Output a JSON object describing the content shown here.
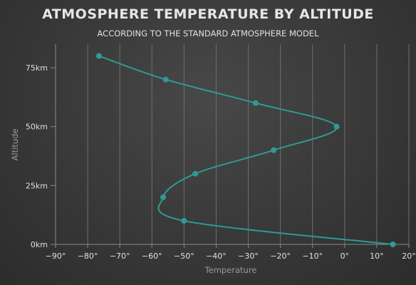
{
  "chart_data": {
    "type": "line",
    "title": "ATMOSPHERE TEMPERATURE BY ALTITUDE",
    "subtitle": "ACCORDING TO THE STANDARD ATMOSPHERE MODEL",
    "xlabel": "Temperature",
    "ylabel": "Altitude",
    "inverted": true,
    "xlim": [
      -90,
      20
    ],
    "ylim": [
      0,
      85
    ],
    "x_ticks": [
      {
        "value": -90,
        "label": "−90°"
      },
      {
        "value": -80,
        "label": "−80°"
      },
      {
        "value": -70,
        "label": "−70°"
      },
      {
        "value": -60,
        "label": "−60°"
      },
      {
        "value": -50,
        "label": "−50°"
      },
      {
        "value": -40,
        "label": "−40°"
      },
      {
        "value": -30,
        "label": "−30°"
      },
      {
        "value": -20,
        "label": "−20°"
      },
      {
        "value": -10,
        "label": "−10°"
      },
      {
        "value": 0,
        "label": "0°"
      },
      {
        "value": 10,
        "label": "10°"
      },
      {
        "value": 20,
        "label": "20°"
      }
    ],
    "y_ticks": [
      {
        "value": 0,
        "label": "0km"
      },
      {
        "value": 25,
        "label": "25km"
      },
      {
        "value": 50,
        "label": "50km"
      },
      {
        "value": 75,
        "label": "75km"
      }
    ],
    "grid": {
      "vertical": true,
      "horizontal": false
    },
    "series": [
      {
        "color": "#2f9a96",
        "points": [
          {
            "altitude": 0,
            "temperature": 15
          },
          {
            "altitude": 10,
            "temperature": -50
          },
          {
            "altitude": 20,
            "temperature": -56.5
          },
          {
            "altitude": 30,
            "temperature": -46.5
          },
          {
            "altitude": 40,
            "temperature": -22.1
          },
          {
            "altitude": 50,
            "temperature": -2.5
          },
          {
            "altitude": 60,
            "temperature": -27.7
          },
          {
            "altitude": 70,
            "temperature": -55.7
          },
          {
            "altitude": 80,
            "temperature": -76.5
          }
        ]
      }
    ]
  }
}
